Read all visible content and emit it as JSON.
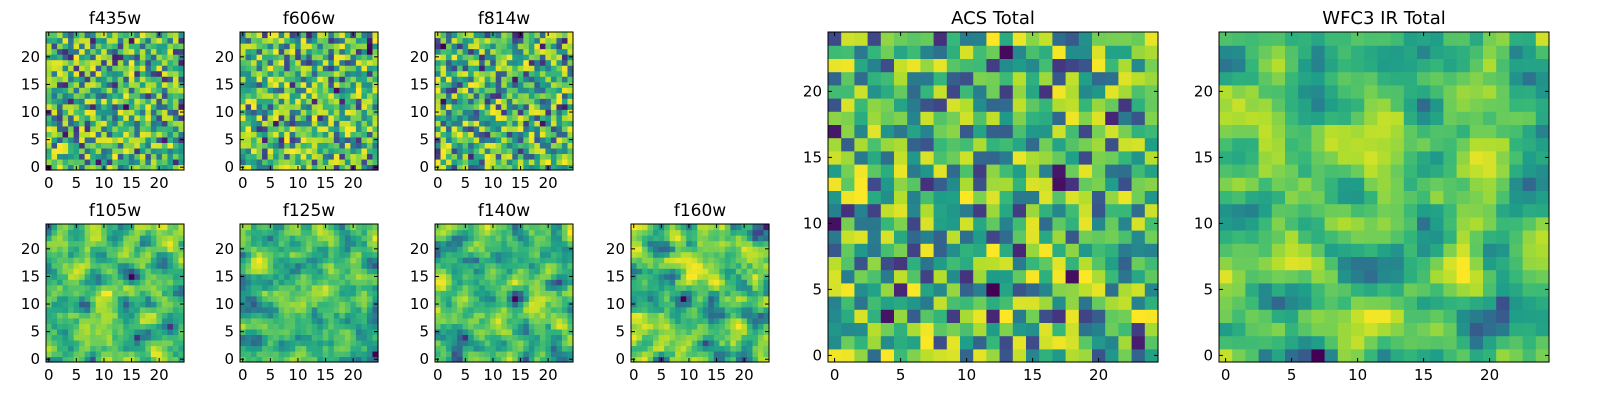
{
  "chart_data": [
    {
      "type": "heatmap",
      "title": "f435w",
      "grid_size": 25,
      "x_ticks": [
        0,
        5,
        10,
        15,
        20
      ],
      "y_ticks": [
        0,
        5,
        10,
        15,
        20
      ],
      "xlim": [
        0,
        24
      ],
      "ylim": [
        0,
        24
      ],
      "colormap": "viridis",
      "pattern": "pixel noise",
      "seed": 11
    },
    {
      "type": "heatmap",
      "title": "f606w",
      "grid_size": 25,
      "x_ticks": [
        0,
        5,
        10,
        15,
        20
      ],
      "y_ticks": [
        0,
        5,
        10,
        15,
        20
      ],
      "xlim": [
        0,
        24
      ],
      "ylim": [
        0,
        24
      ],
      "colormap": "viridis",
      "pattern": "pixel noise",
      "seed": 23
    },
    {
      "type": "heatmap",
      "title": "f814w",
      "grid_size": 25,
      "x_ticks": [
        0,
        5,
        10,
        15,
        20
      ],
      "y_ticks": [
        0,
        5,
        10,
        15,
        20
      ],
      "xlim": [
        0,
        24
      ],
      "ylim": [
        0,
        24
      ],
      "colormap": "viridis",
      "pattern": "pixel noise",
      "seed": 37
    },
    {
      "type": "heatmap",
      "title": "f105w",
      "grid_size": 25,
      "x_ticks": [
        0,
        5,
        10,
        15,
        20
      ],
      "y_ticks": [
        0,
        5,
        10,
        15,
        20
      ],
      "xlim": [
        0,
        24
      ],
      "ylim": [
        0,
        24
      ],
      "colormap": "viridis",
      "pattern": "smoothed noise",
      "seed": 41
    },
    {
      "type": "heatmap",
      "title": "f125w",
      "grid_size": 25,
      "x_ticks": [
        0,
        5,
        10,
        15,
        20
      ],
      "y_ticks": [
        0,
        5,
        10,
        15,
        20
      ],
      "xlim": [
        0,
        24
      ],
      "ylim": [
        0,
        24
      ],
      "colormap": "viridis",
      "pattern": "smoothed noise",
      "seed": 53
    },
    {
      "type": "heatmap",
      "title": "f140w",
      "grid_size": 25,
      "x_ticks": [
        0,
        5,
        10,
        15,
        20
      ],
      "y_ticks": [
        0,
        5,
        10,
        15,
        20
      ],
      "xlim": [
        0,
        24
      ],
      "ylim": [
        0,
        24
      ],
      "colormap": "viridis",
      "pattern": "smoothed noise",
      "seed": 67
    },
    {
      "type": "heatmap",
      "title": "f160w",
      "grid_size": 25,
      "x_ticks": [
        0,
        5,
        10,
        15,
        20
      ],
      "y_ticks": [
        0,
        5,
        10,
        15,
        20
      ],
      "xlim": [
        0,
        24
      ],
      "ylim": [
        0,
        24
      ],
      "colormap": "viridis",
      "pattern": "smoothed noise",
      "seed": 79
    },
    {
      "type": "heatmap",
      "title": "ACS Total",
      "grid_size": 25,
      "x_ticks": [
        0,
        5,
        10,
        15,
        20
      ],
      "y_ticks": [
        0,
        5,
        10,
        15,
        20
      ],
      "xlim": [
        0,
        24
      ],
      "ylim": [
        0,
        24
      ],
      "colormap": "viridis",
      "pattern": "pixel noise",
      "seed": 83
    },
    {
      "type": "heatmap",
      "title": "WFC3 IR Total",
      "grid_size": 25,
      "x_ticks": [
        0,
        5,
        10,
        15,
        20
      ],
      "y_ticks": [
        0,
        5,
        10,
        15,
        20
      ],
      "xlim": [
        0,
        24
      ],
      "ylim": [
        0,
        24
      ],
      "colormap": "viridis",
      "pattern": "smoothed noise",
      "seed": 97
    }
  ]
}
